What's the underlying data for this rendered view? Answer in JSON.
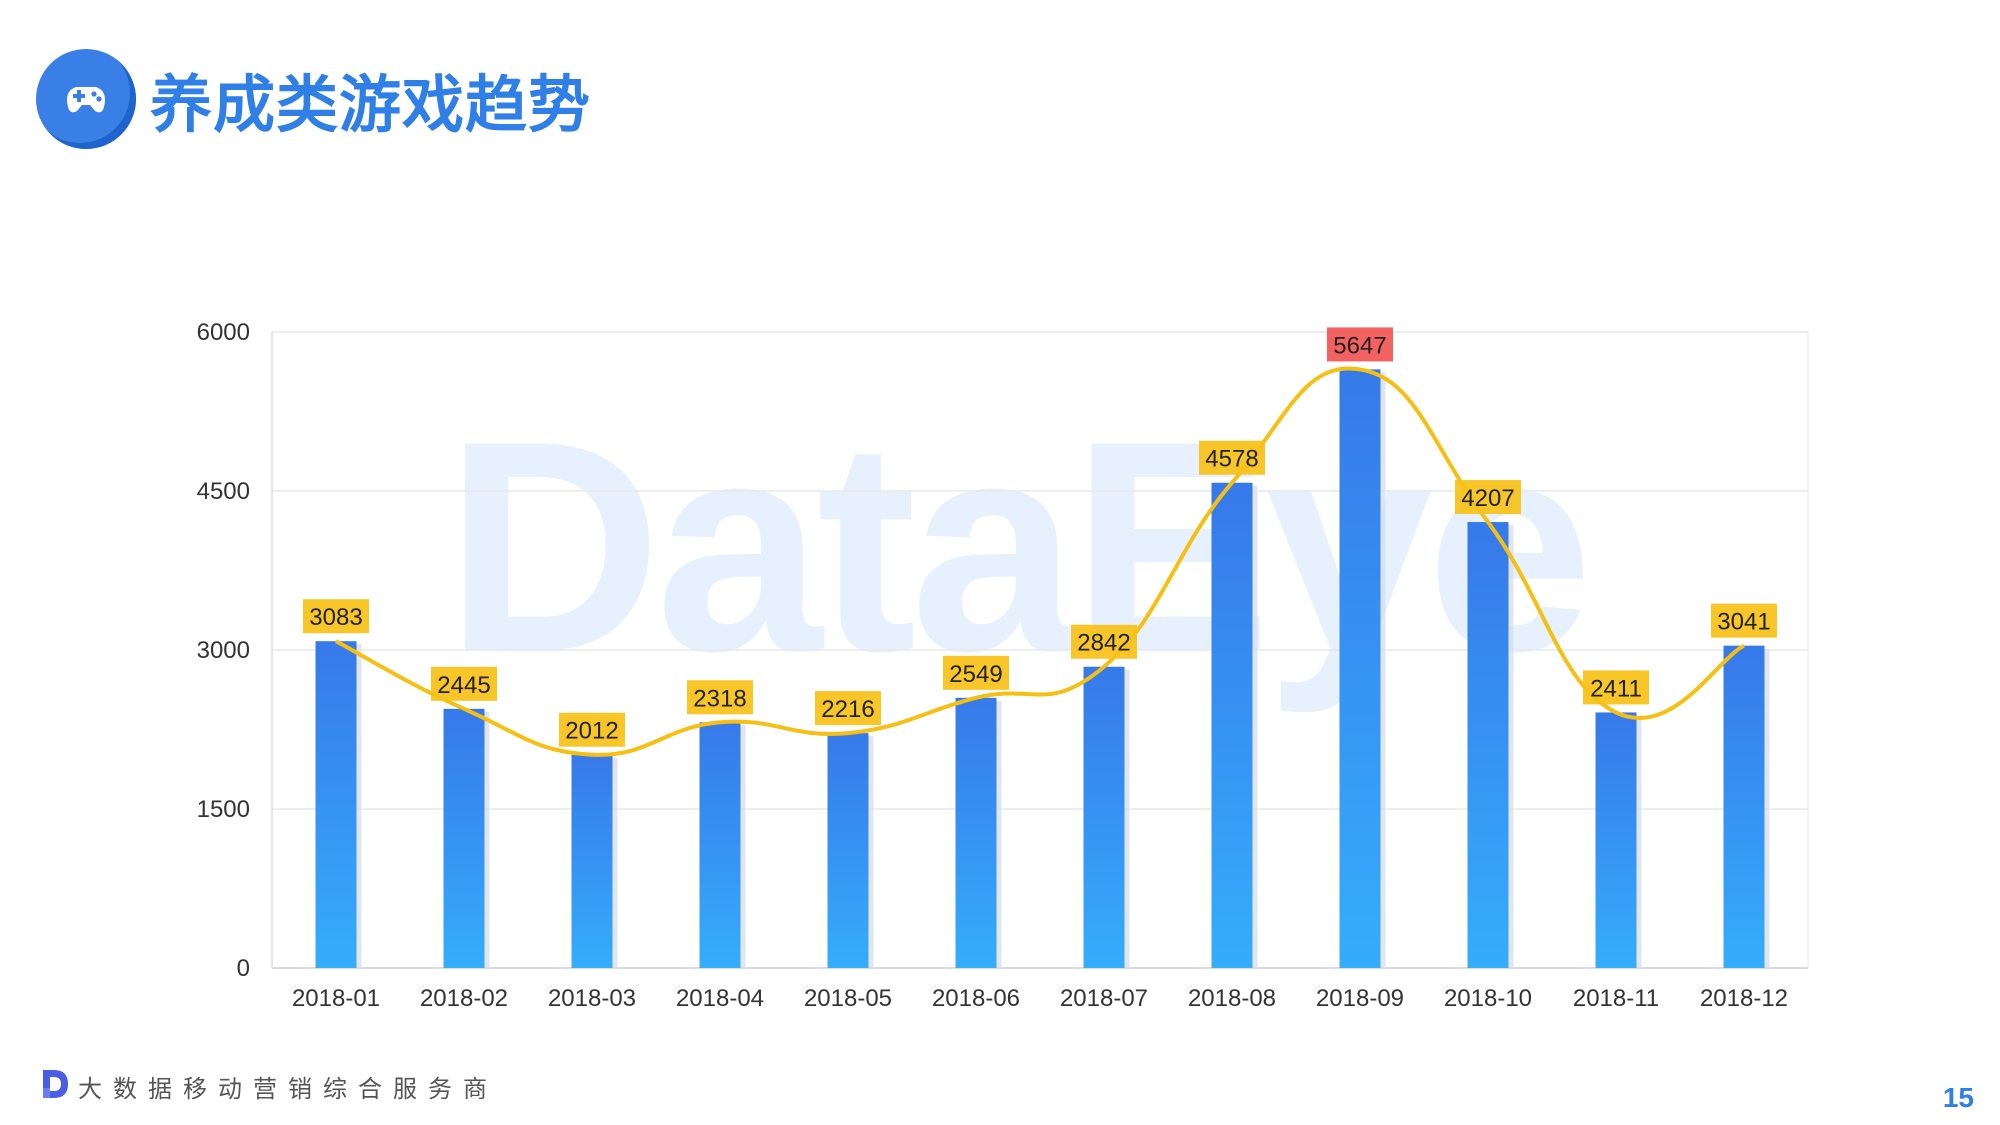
{
  "header": {
    "title": "养成类游戏趋势",
    "icon": "gamepad-icon"
  },
  "watermark": "DataEye",
  "footer": {
    "tagline": "大数据移动营销综合服务商",
    "icon": "dataeye-logo-icon"
  },
  "page_number": "15",
  "colors": {
    "accent": "#2f7fe6",
    "bar_top": "#3779e9",
    "bar_bottom": "#35adfb",
    "line": "#f5bf14",
    "label_bg": "#f7c117",
    "label_max_bg": "#f25454"
  },
  "chart_data": {
    "type": "bar",
    "categories": [
      "2018-01",
      "2018-02",
      "2018-03",
      "2018-04",
      "2018-05",
      "2018-06",
      "2018-07",
      "2018-08",
      "2018-09",
      "2018-10",
      "2018-11",
      "2018-12"
    ],
    "values": [
      3083,
      2445,
      2012,
      2318,
      2216,
      2549,
      2842,
      4578,
      5647,
      4207,
      2411,
      3041
    ],
    "overlay": "smooth-line",
    "highlight_max": true,
    "ylim": [
      0,
      6000
    ],
    "yticks": [
      0,
      1500,
      3000,
      4500,
      6000
    ],
    "grid": true,
    "legend": "none",
    "title": "",
    "xlabel": "",
    "ylabel": ""
  }
}
